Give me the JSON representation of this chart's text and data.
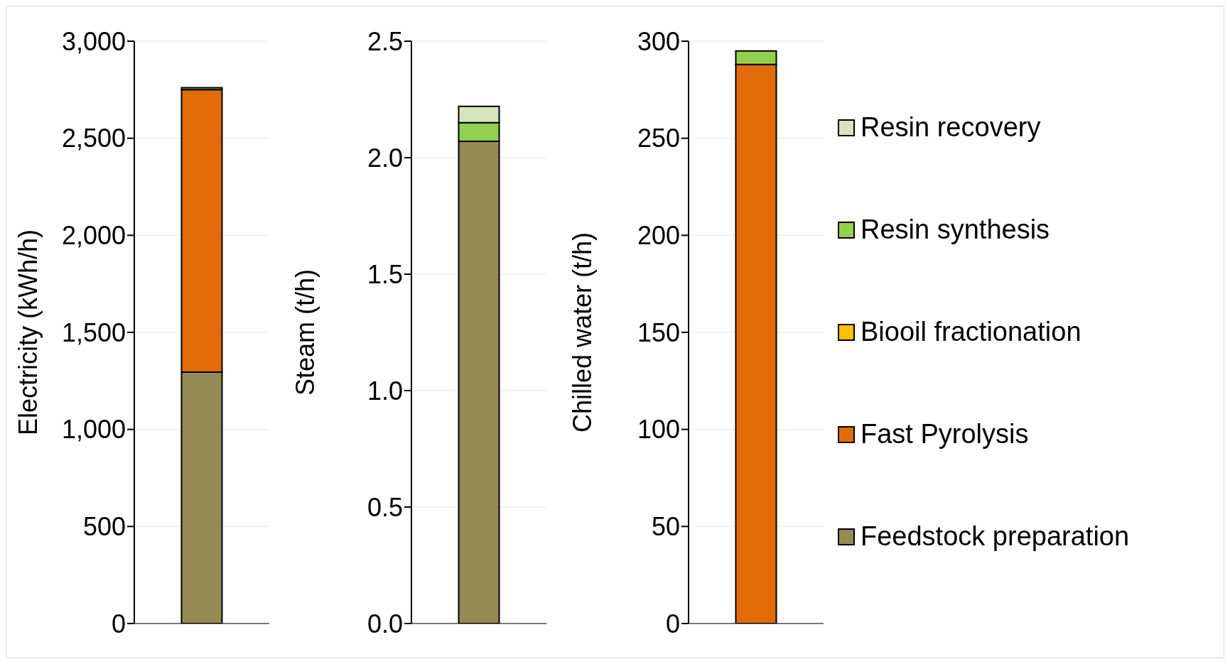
{
  "chart_data": [
    {
      "type": "bar",
      "stacked": true,
      "categories": [
        null
      ],
      "ylabel": "Electricity (kWh/h)",
      "ylim": [
        0,
        3000
      ],
      "yticks": [
        {
          "value": 0,
          "label": "0"
        },
        {
          "value": 500,
          "label": "500"
        },
        {
          "value": 1000,
          "label": "1,000"
        },
        {
          "value": 1500,
          "label": "1,500"
        },
        {
          "value": 2000,
          "label": "2,000"
        },
        {
          "value": 2500,
          "label": "2,500"
        },
        {
          "value": 3000,
          "label": "3,000"
        }
      ],
      "grid": "y",
      "legend": false,
      "series": [
        {
          "color": "#948a54",
          "values": [
            1295
          ]
        },
        {
          "color": "#e36c09",
          "values": [
            1455
          ]
        },
        {
          "color": "#92d050",
          "values": [
            10
          ]
        }
      ]
    },
    {
      "type": "bar",
      "stacked": true,
      "categories": [
        null
      ],
      "ylabel": "Steam (t/h)",
      "ylim": [
        0,
        2.5
      ],
      "yticks": [
        {
          "value": 0,
          "label": "0.0"
        },
        0.5,
        {
          "value": 1,
          "label": "1.0"
        },
        1.5,
        {
          "value": 2,
          "label": "2.0"
        },
        2.5
      ],
      "grid": "y",
      "legend": false,
      "series": [
        {
          "color": "#948a54",
          "values": [
            2.07
          ]
        },
        {
          "color": "#92d050",
          "values": [
            0.08
          ]
        },
        {
          "color": "#d7e4bd",
          "values": [
            0.07
          ]
        }
      ]
    },
    {
      "type": "bar",
      "stacked": true,
      "categories": [
        null
      ],
      "ylabel": "Chilled water (t/h)",
      "ylim": [
        0,
        300
      ],
      "yticks": [
        0,
        50,
        100,
        150,
        200,
        250,
        300
      ],
      "grid": "y",
      "legend": "right",
      "series": [
        {
          "name": "Feedstock preparation",
          "color": "#948a54",
          "values": [
            0
          ]
        },
        {
          "name": "Fast Pyrolysis",
          "color": "#e36c09",
          "values": [
            288
          ]
        },
        {
          "name": "Biooil fractionation",
          "color": "#ffc000",
          "values": [
            0
          ]
        },
        {
          "name": "Resin synthesis",
          "color": "#92d050",
          "values": [
            7
          ]
        },
        {
          "name": "Resin recovery",
          "color": "#d7e4bd",
          "values": [
            0
          ]
        }
      ]
    }
  ]
}
